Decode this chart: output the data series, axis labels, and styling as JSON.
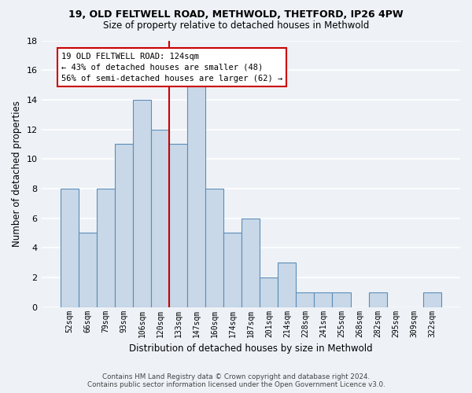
{
  "title1": "19, OLD FELTWELL ROAD, METHWOLD, THETFORD, IP26 4PW",
  "title2": "Size of property relative to detached houses in Methwold",
  "xlabel": "Distribution of detached houses by size in Methwold",
  "ylabel": "Number of detached properties",
  "categories": [
    "52sqm",
    "66sqm",
    "79sqm",
    "93sqm",
    "106sqm",
    "120sqm",
    "133sqm",
    "147sqm",
    "160sqm",
    "174sqm",
    "187sqm",
    "201sqm",
    "214sqm",
    "228sqm",
    "241sqm",
    "255sqm",
    "268sqm",
    "282sqm",
    "295sqm",
    "309sqm",
    "322sqm"
  ],
  "values": [
    8,
    5,
    8,
    11,
    14,
    12,
    11,
    15,
    8,
    5,
    6,
    2,
    3,
    1,
    1,
    1,
    0,
    1,
    0,
    0,
    1
  ],
  "bar_color": "#c8d8e8",
  "bar_edge_color": "#5b8db8",
  "annotation_text1": "19 OLD FELTWELL ROAD: 124sqm",
  "annotation_text2": "← 43% of detached houses are smaller (48)",
  "annotation_text3": "56% of semi-detached houses are larger (62) →",
  "annotation_box_color": "#ffffff",
  "annotation_box_edge": "#cc0000",
  "vline_color": "#cc0000",
  "footer1": "Contains HM Land Registry data © Crown copyright and database right 2024.",
  "footer2": "Contains public sector information licensed under the Open Government Licence v3.0.",
  "bg_color": "#eef2f7",
  "grid_color": "#ffffff",
  "ylim": [
    0,
    18
  ],
  "yticks": [
    0,
    2,
    4,
    6,
    8,
    10,
    12,
    14,
    16,
    18
  ]
}
